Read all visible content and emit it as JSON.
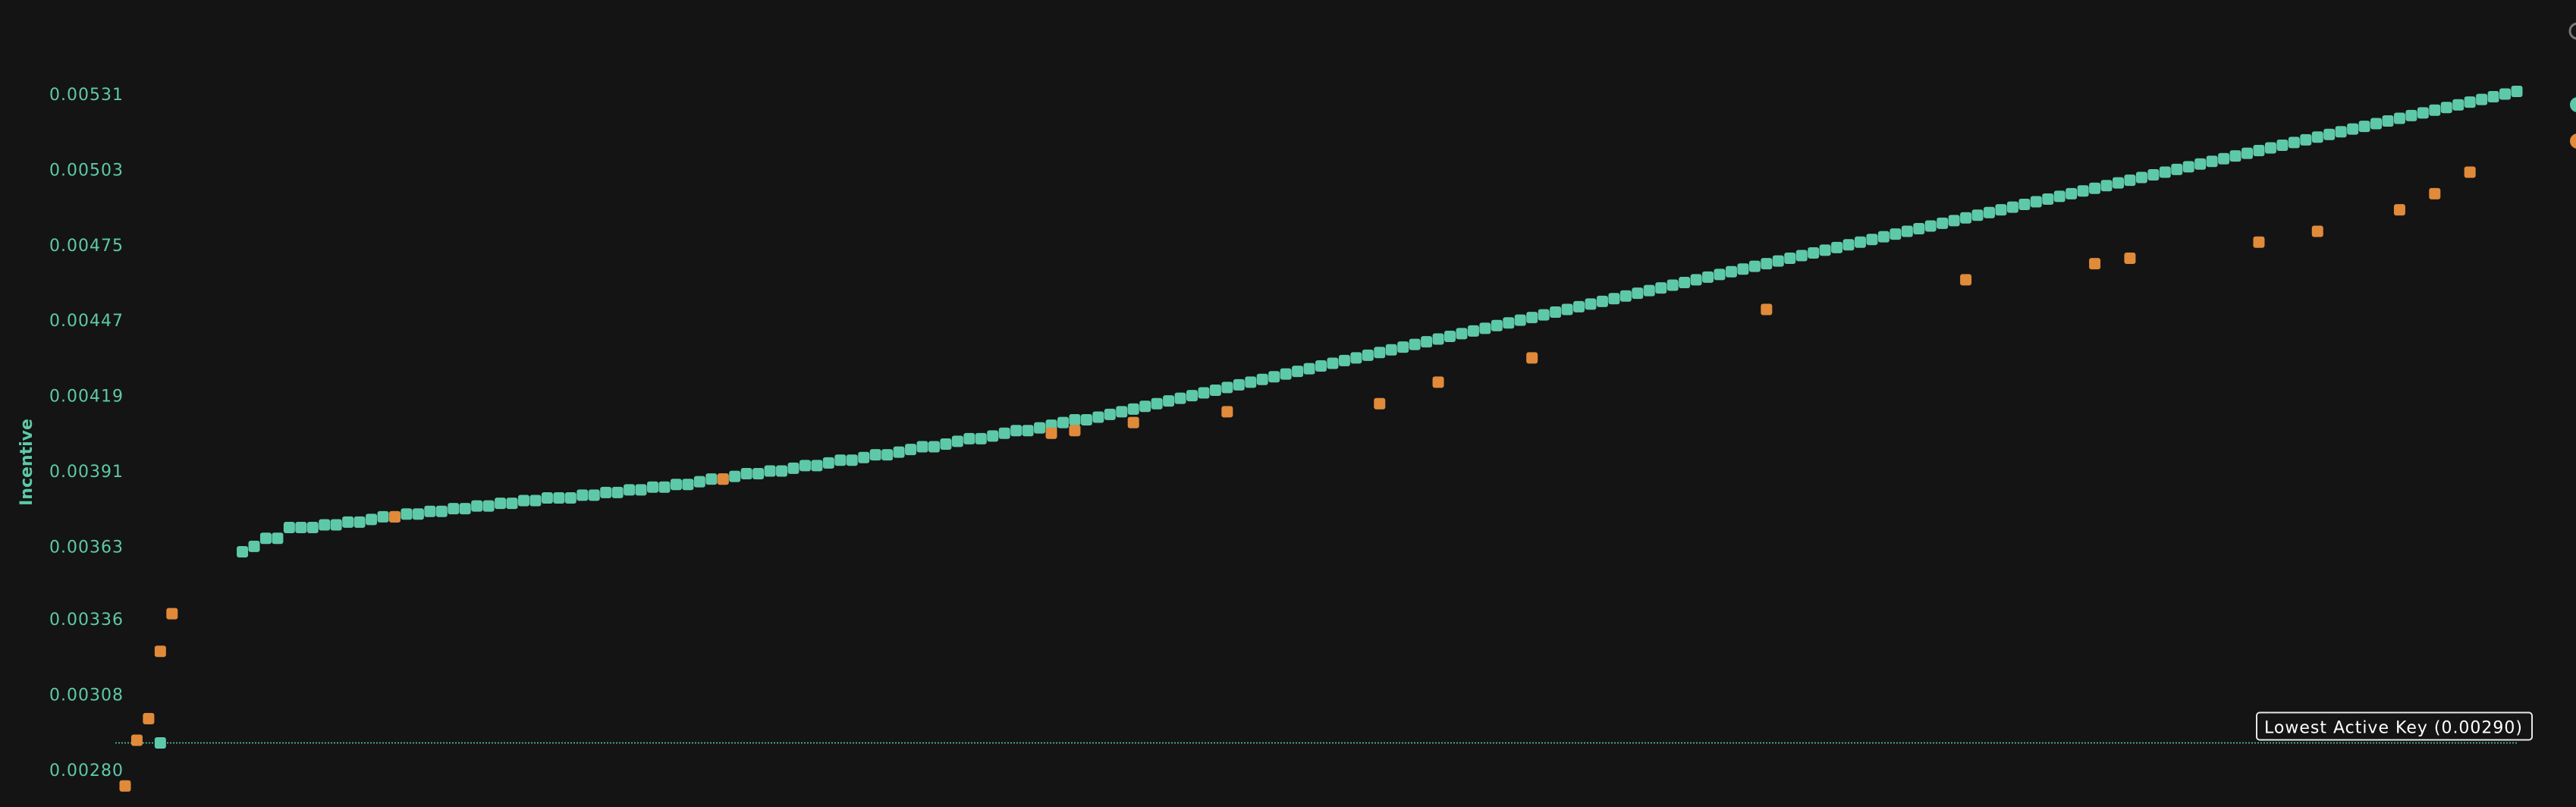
{
  "chart_data": {
    "type": "scatter",
    "ylabel": "Incentive",
    "yticks": [
      "0.00531",
      "0.00503",
      "0.00475",
      "0.00447",
      "0.00419",
      "0.00391",
      "0.00363",
      "0.00336",
      "0.00308",
      "0.00280"
    ],
    "ylim": [
      0.00273,
      0.00546
    ],
    "legend_position": "top-right",
    "grid": false,
    "reference_line": {
      "value": 0.0029,
      "label": "Lowest Active Key (0.00290)"
    },
    "colors": {
      "series_a": "#5ec9a8",
      "series_b": "#e08a3a",
      "background": "#141414",
      "legend_extra": "#777777"
    },
    "series": [
      {
        "color": "#5ec9a8",
        "points": [
          [
            3,
            0.0029
          ],
          [
            10,
            0.00361
          ],
          [
            11,
            0.00363
          ],
          [
            12,
            0.00366
          ],
          [
            13,
            0.00366
          ],
          [
            14,
            0.0037
          ],
          [
            15,
            0.0037
          ],
          [
            16,
            0.0037
          ],
          [
            17,
            0.00371
          ],
          [
            18,
            0.00371
          ],
          [
            19,
            0.00372
          ],
          [
            20,
            0.00372
          ],
          [
            21,
            0.00373
          ],
          [
            22,
            0.00374
          ],
          [
            23,
            0.00374
          ],
          [
            24,
            0.00375
          ],
          [
            25,
            0.00375
          ],
          [
            26,
            0.00376
          ],
          [
            27,
            0.00376
          ],
          [
            28,
            0.00377
          ],
          [
            29,
            0.00377
          ],
          [
            30,
            0.00378
          ],
          [
            31,
            0.00378
          ],
          [
            32,
            0.00379
          ],
          [
            33,
            0.00379
          ],
          [
            34,
            0.0038
          ],
          [
            35,
            0.0038
          ],
          [
            36,
            0.00381
          ],
          [
            37,
            0.00381
          ],
          [
            38,
            0.00381
          ],
          [
            39,
            0.00382
          ],
          [
            40,
            0.00382
          ],
          [
            41,
            0.00383
          ],
          [
            42,
            0.00383
          ],
          [
            43,
            0.00384
          ],
          [
            44,
            0.00384
          ],
          [
            45,
            0.00385
          ],
          [
            46,
            0.00385
          ],
          [
            47,
            0.00386
          ],
          [
            48,
            0.00386
          ],
          [
            49,
            0.00387
          ],
          [
            50,
            0.00388
          ],
          [
            51,
            0.00388
          ],
          [
            52,
            0.00389
          ],
          [
            53,
            0.0039
          ],
          [
            54,
            0.0039
          ],
          [
            55,
            0.00391
          ],
          [
            56,
            0.00391
          ],
          [
            57,
            0.00392
          ],
          [
            58,
            0.00393
          ],
          [
            59,
            0.00393
          ],
          [
            60,
            0.00394
          ],
          [
            61,
            0.00395
          ],
          [
            62,
            0.00395
          ],
          [
            63,
            0.00396
          ],
          [
            64,
            0.00397
          ],
          [
            65,
            0.00397
          ],
          [
            66,
            0.00398
          ],
          [
            67,
            0.00399
          ],
          [
            68,
            0.004
          ],
          [
            69,
            0.004
          ],
          [
            70,
            0.00401
          ],
          [
            71,
            0.00402
          ],
          [
            72,
            0.00403
          ],
          [
            73,
            0.00403
          ],
          [
            74,
            0.00404
          ],
          [
            75,
            0.00405
          ],
          [
            76,
            0.00406
          ],
          [
            77,
            0.00406
          ],
          [
            78,
            0.00407
          ],
          [
            79,
            0.00408
          ],
          [
            80,
            0.00409
          ],
          [
            81,
            0.0041
          ],
          [
            82,
            0.0041
          ],
          [
            83,
            0.00411
          ],
          [
            84,
            0.00412
          ],
          [
            85,
            0.00413
          ],
          [
            86,
            0.00414
          ],
          [
            87,
            0.00415
          ],
          [
            88,
            0.00416
          ],
          [
            89,
            0.00417
          ],
          [
            90,
            0.00418
          ],
          [
            91,
            0.00419
          ],
          [
            92,
            0.0042
          ],
          [
            93,
            0.00421
          ],
          [
            94,
            0.00422
          ],
          [
            95,
            0.00423
          ],
          [
            96,
            0.00424
          ],
          [
            97,
            0.00425
          ],
          [
            98,
            0.00426
          ],
          [
            99,
            0.00427
          ],
          [
            100,
            0.00428
          ],
          [
            101,
            0.00429
          ],
          [
            102,
            0.0043
          ],
          [
            103,
            0.00431
          ],
          [
            104,
            0.00432
          ],
          [
            105,
            0.00433
          ],
          [
            106,
            0.00434
          ],
          [
            107,
            0.00435
          ],
          [
            108,
            0.00436
          ],
          [
            109,
            0.00437
          ],
          [
            110,
            0.00438
          ],
          [
            111,
            0.00439
          ],
          [
            112,
            0.0044
          ],
          [
            113,
            0.00441
          ],
          [
            114,
            0.00442
          ],
          [
            115,
            0.00443
          ],
          [
            116,
            0.00444
          ],
          [
            117,
            0.00445
          ],
          [
            118,
            0.00446
          ],
          [
            119,
            0.00447
          ],
          [
            120,
            0.00448
          ],
          [
            121,
            0.00449
          ],
          [
            122,
            0.0045
          ],
          [
            123,
            0.00451
          ],
          [
            124,
            0.00452
          ],
          [
            125,
            0.00453
          ],
          [
            126,
            0.00454
          ],
          [
            127,
            0.00455
          ],
          [
            128,
            0.00456
          ],
          [
            129,
            0.00457
          ],
          [
            130,
            0.00458
          ],
          [
            131,
            0.00459
          ],
          [
            132,
            0.0046
          ],
          [
            133,
            0.00461
          ],
          [
            134,
            0.00462
          ],
          [
            135,
            0.00463
          ],
          [
            136,
            0.00464
          ],
          [
            137,
            0.00465
          ],
          [
            138,
            0.00466
          ],
          [
            139,
            0.00467
          ],
          [
            140,
            0.00468
          ],
          [
            141,
            0.00469
          ],
          [
            142,
            0.0047
          ],
          [
            143,
            0.00471
          ],
          [
            144,
            0.00472
          ],
          [
            145,
            0.00473
          ],
          [
            146,
            0.00474
          ],
          [
            147,
            0.00475
          ],
          [
            148,
            0.00476
          ],
          [
            149,
            0.00477
          ],
          [
            150,
            0.00478
          ],
          [
            151,
            0.00479
          ],
          [
            152,
            0.0048
          ],
          [
            153,
            0.00481
          ],
          [
            154,
            0.00482
          ],
          [
            155,
            0.00483
          ],
          [
            156,
            0.00484
          ],
          [
            157,
            0.00485
          ],
          [
            158,
            0.00486
          ],
          [
            159,
            0.00487
          ],
          [
            160,
            0.00488
          ],
          [
            161,
            0.00489
          ],
          [
            162,
            0.0049
          ],
          [
            163,
            0.00491
          ],
          [
            164,
            0.00492
          ],
          [
            165,
            0.00493
          ],
          [
            166,
            0.00494
          ],
          [
            167,
            0.00495
          ],
          [
            168,
            0.00496
          ],
          [
            169,
            0.00497
          ],
          [
            170,
            0.00498
          ],
          [
            171,
            0.00499
          ],
          [
            172,
            0.005
          ],
          [
            173,
            0.00501
          ],
          [
            174,
            0.00502
          ],
          [
            175,
            0.00503
          ],
          [
            176,
            0.00504
          ],
          [
            177,
            0.00505
          ],
          [
            178,
            0.00506
          ],
          [
            179,
            0.00507
          ],
          [
            180,
            0.00508
          ],
          [
            181,
            0.00509
          ],
          [
            182,
            0.0051
          ],
          [
            183,
            0.00511
          ],
          [
            184,
            0.00512
          ],
          [
            185,
            0.00513
          ],
          [
            186,
            0.00514
          ],
          [
            187,
            0.00515
          ],
          [
            188,
            0.00516
          ],
          [
            189,
            0.00517
          ],
          [
            190,
            0.00518
          ],
          [
            191,
            0.00519
          ],
          [
            192,
            0.0052
          ],
          [
            193,
            0.00521
          ],
          [
            194,
            0.00522
          ],
          [
            195,
            0.00523
          ],
          [
            196,
            0.00524
          ],
          [
            197,
            0.00525
          ],
          [
            198,
            0.00526
          ],
          [
            199,
            0.00527
          ],
          [
            200,
            0.00528
          ],
          [
            201,
            0.00529
          ],
          [
            202,
            0.0053
          ],
          [
            203,
            0.00531
          ],
          [
            204,
            0.00532
          ]
        ]
      },
      {
        "color": "#e08a3a",
        "points": [
          [
            0,
            0.00274
          ],
          [
            1,
            0.00291
          ],
          [
            2,
            0.00299
          ],
          [
            3,
            0.00324
          ],
          [
            4,
            0.00338
          ],
          [
            23,
            0.00374
          ],
          [
            51,
            0.00388
          ],
          [
            79,
            0.00405
          ],
          [
            81,
            0.00406
          ],
          [
            86,
            0.00409
          ],
          [
            94,
            0.00413
          ],
          [
            107,
            0.00416
          ],
          [
            112,
            0.00424
          ],
          [
            120,
            0.00433
          ],
          [
            140,
            0.00451
          ],
          [
            157,
            0.00462
          ],
          [
            168,
            0.00468
          ],
          [
            171,
            0.0047
          ],
          [
            182,
            0.00476
          ],
          [
            187,
            0.0048
          ],
          [
            194,
            0.00488
          ],
          [
            197,
            0.00494
          ],
          [
            200,
            0.00502
          ]
        ]
      }
    ]
  }
}
